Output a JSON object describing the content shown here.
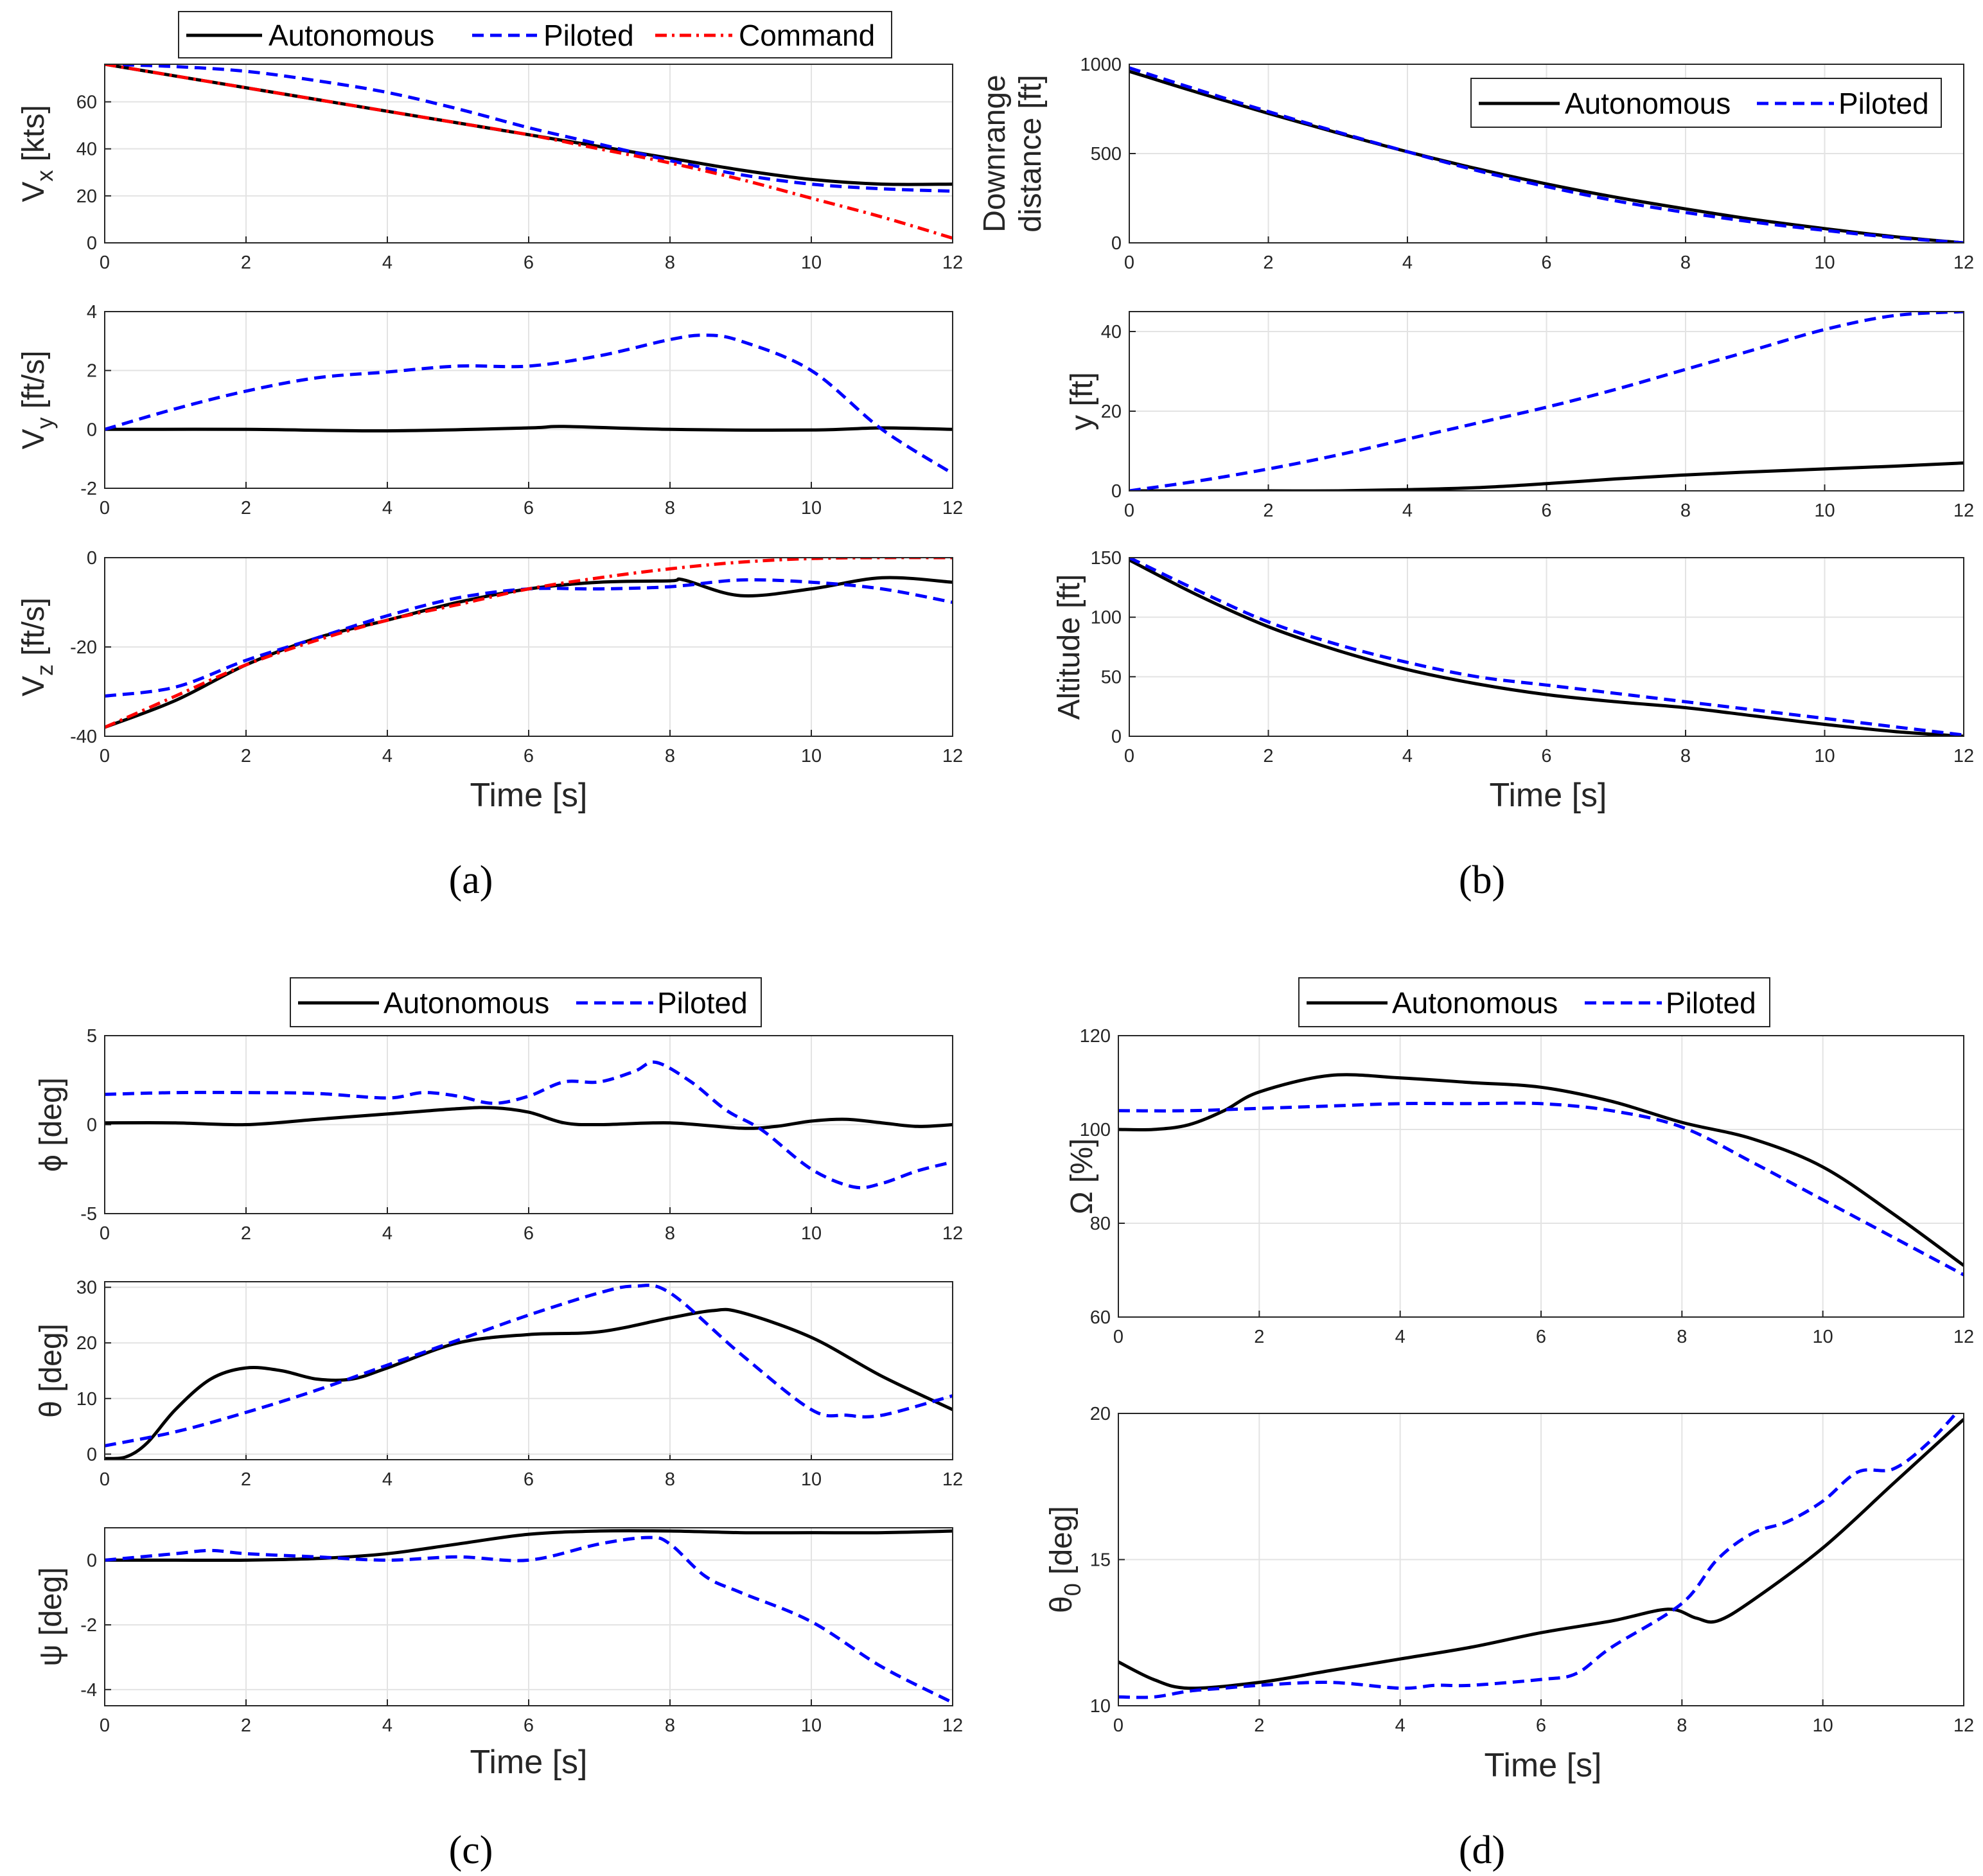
{
  "colors": {
    "autonomous": "#000000",
    "piloted": "#0000ff",
    "command": "#ff0000"
  },
  "xlabel": "Time [s]",
  "legend": {
    "autonomous": "Autonomous",
    "piloted": "Piloted",
    "command": "Command"
  },
  "panel_labels": {
    "a": "(a)",
    "b": "(b)",
    "c": "(c)",
    "d": "(d)"
  },
  "chart_data": [
    {
      "type": "line",
      "id": "vx",
      "ylabel": "V",
      "ylabel_sub": "x",
      "ylabel_unit": " [kts]",
      "xlim": [
        0,
        12
      ],
      "ylim": [
        0,
        76
      ],
      "yticks": [
        0,
        20,
        40,
        60
      ],
      "series": [
        {
          "name": "Autonomous",
          "style": "solid",
          "x": [
            0,
            1,
            2,
            3,
            4,
            5,
            6,
            7,
            8,
            9,
            10,
            11,
            12
          ],
          "y": [
            76,
            71,
            66,
            61,
            56,
            51,
            46,
            41,
            36,
            31,
            27,
            25,
            25
          ]
        },
        {
          "name": "Piloted",
          "style": "dashed",
          "x": [
            0,
            1,
            2,
            3,
            4,
            5,
            6,
            7,
            8,
            9,
            10,
            11,
            12
          ],
          "y": [
            76,
            75,
            73,
            69,
            64,
            57,
            49,
            42,
            35,
            29,
            25,
            23,
            22
          ]
        },
        {
          "name": "Command",
          "style": "dashdot",
          "x": [
            0,
            1,
            2,
            3,
            4,
            5,
            6,
            7,
            8,
            9,
            10,
            11,
            12
          ],
          "y": [
            76,
            71,
            66,
            61,
            56,
            51,
            46,
            40,
            34,
            27,
            19,
            11,
            2
          ]
        }
      ]
    },
    {
      "type": "line",
      "id": "vy",
      "ylabel": "V",
      "ylabel_sub": "y",
      "ylabel_unit": " [ft/s]",
      "xlim": [
        0,
        12
      ],
      "ylim": [
        -2,
        4
      ],
      "yticks": [
        -2,
        0,
        2,
        4
      ],
      "series": [
        {
          "name": "Autonomous",
          "style": "solid",
          "x": [
            0,
            2,
            4,
            6,
            6.5,
            8,
            10,
            11,
            12
          ],
          "y": [
            0,
            0,
            -0.05,
            0.05,
            0.1,
            0,
            -0.02,
            0.05,
            0
          ]
        },
        {
          "name": "Piloted",
          "style": "dashed",
          "x": [
            0,
            1,
            2,
            3,
            4,
            5,
            6,
            7,
            8,
            8.5,
            9,
            10,
            11,
            12
          ],
          "y": [
            0,
            0.7,
            1.3,
            1.75,
            1.95,
            2.15,
            2.15,
            2.5,
            3.05,
            3.2,
            3.0,
            2.0,
            0,
            -1.5
          ]
        }
      ]
    },
    {
      "type": "line",
      "id": "vz",
      "ylabel": "V",
      "ylabel_sub": "z",
      "ylabel_unit": " [ft/s]",
      "xlim": [
        0,
        12
      ],
      "ylim": [
        -40,
        0
      ],
      "yticks": [
        -40,
        -20,
        0
      ],
      "series": [
        {
          "name": "Autonomous",
          "style": "solid",
          "x": [
            0,
            1,
            2,
            3,
            4,
            5,
            6,
            7,
            8,
            8.2,
            9,
            10,
            11,
            12
          ],
          "y": [
            -38,
            -32,
            -24,
            -18,
            -14,
            -10,
            -7,
            -5.5,
            -5.2,
            -5,
            -8.5,
            -7,
            -4.5,
            -5.5
          ]
        },
        {
          "name": "Piloted",
          "style": "dashed",
          "x": [
            0,
            1,
            2,
            3,
            4,
            5,
            6,
            7,
            8,
            9,
            10,
            11,
            12
          ],
          "y": [
            -31,
            -29,
            -23,
            -18,
            -13,
            -9,
            -7,
            -7,
            -6.5,
            -5,
            -5.5,
            -7,
            -10
          ]
        },
        {
          "name": "Command",
          "style": "dashdot",
          "x": [
            0,
            1,
            2,
            3,
            4,
            5,
            6,
            7,
            8,
            9,
            10,
            11,
            12
          ],
          "y": [
            -38,
            -31,
            -24,
            -18.5,
            -14,
            -10.5,
            -7,
            -4.5,
            -2.5,
            -1,
            -0.2,
            0,
            0
          ]
        }
      ]
    },
    {
      "type": "line",
      "id": "downrange",
      "ylabel": "Downrange",
      "ylabel2": "distance [ft]",
      "xlim": [
        0,
        12
      ],
      "ylim": [
        0,
        1000
      ],
      "yticks": [
        0,
        500,
        1000
      ],
      "series": [
        {
          "name": "Autonomous",
          "style": "solid",
          "x": [
            0,
            1,
            2,
            3,
            4,
            5,
            6,
            7,
            8,
            9,
            10,
            11,
            12
          ],
          "y": [
            960,
            840,
            725,
            615,
            510,
            415,
            330,
            255,
            190,
            130,
            80,
            35,
            0
          ]
        },
        {
          "name": "Piloted",
          "style": "dashed",
          "x": [
            0,
            1,
            2,
            3,
            4,
            5,
            6,
            7,
            8,
            9,
            10,
            11,
            12
          ],
          "y": [
            980,
            855,
            735,
            620,
            510,
            405,
            315,
            235,
            170,
            115,
            70,
            30,
            0
          ]
        }
      ]
    },
    {
      "type": "line",
      "id": "y",
      "ylabel": "y [ft]",
      "xlim": [
        0,
        12
      ],
      "ylim": [
        0,
        45
      ],
      "yticks": [
        0,
        20,
        40
      ],
      "series": [
        {
          "name": "Autonomous",
          "style": "solid",
          "x": [
            0,
            1,
            2,
            3,
            4,
            5,
            6,
            7,
            8,
            9,
            10,
            11,
            12
          ],
          "y": [
            0,
            0,
            0,
            0,
            0.3,
            0.8,
            1.8,
            3,
            4,
            4.8,
            5.5,
            6.2,
            7
          ]
        },
        {
          "name": "Piloted",
          "style": "dashed",
          "x": [
            0,
            1,
            2,
            3,
            4,
            5,
            6,
            7,
            8,
            9,
            10,
            11,
            12
          ],
          "y": [
            0,
            2.5,
            5.5,
            9,
            13,
            17,
            21,
            25.5,
            30.5,
            35.5,
            40.5,
            44,
            45
          ]
        }
      ]
    },
    {
      "type": "line",
      "id": "altitude",
      "ylabel": "Altitude [ft]",
      "xlim": [
        0,
        12
      ],
      "ylim": [
        0,
        150
      ],
      "yticks": [
        0,
        50,
        100,
        150
      ],
      "series": [
        {
          "name": "Autonomous",
          "style": "solid",
          "x": [
            0,
            1,
            2,
            3,
            4,
            5,
            6,
            7,
            8,
            9,
            10,
            11,
            12
          ],
          "y": [
            148,
            118,
            92,
            72,
            56,
            44,
            35,
            29,
            24,
            17,
            10,
            4,
            0
          ]
        },
        {
          "name": "Piloted",
          "style": "dashed",
          "x": [
            0,
            1,
            2,
            3,
            4,
            5,
            6,
            7,
            8,
            9,
            10,
            11,
            12
          ],
          "y": [
            150,
            122,
            96,
            77,
            62,
            50,
            43,
            36,
            29,
            22,
            15,
            8,
            1
          ]
        }
      ]
    },
    {
      "type": "line",
      "id": "phi",
      "ylabel": "ϕ [deg]",
      "xlim": [
        0,
        12
      ],
      "ylim": [
        -5,
        5
      ],
      "yticks": [
        -5,
        0,
        5
      ],
      "series": [
        {
          "name": "Autonomous",
          "style": "solid",
          "x": [
            0,
            1,
            2,
            3,
            4,
            5,
            5.5,
            6,
            6.5,
            7,
            8,
            9,
            9.5,
            10,
            10.5,
            11,
            11.5,
            12
          ],
          "y": [
            0.1,
            0.1,
            0,
            0.3,
            0.6,
            0.9,
            0.95,
            0.7,
            0.1,
            0,
            0.1,
            -0.2,
            -0.1,
            0.2,
            0.3,
            0.1,
            -0.1,
            0
          ]
        },
        {
          "name": "Piloted",
          "style": "dashed",
          "x": [
            0,
            1,
            2,
            3,
            4,
            4.5,
            5,
            5.5,
            6,
            6.5,
            7,
            7.5,
            7.8,
            8.3,
            8.8,
            9.3,
            10,
            10.6,
            11,
            11.5,
            12
          ],
          "y": [
            1.7,
            1.8,
            1.8,
            1.75,
            1.5,
            1.8,
            1.6,
            1.2,
            1.6,
            2.4,
            2.4,
            3.0,
            3.5,
            2.4,
            0.8,
            -0.3,
            -2.5,
            -3.5,
            -3.3,
            -2.6,
            -2.1
          ]
        }
      ]
    },
    {
      "type": "line",
      "id": "theta",
      "ylabel": "θ [deg]",
      "xlim": [
        0,
        12
      ],
      "ylim": [
        -1,
        31
      ],
      "yticks": [
        0,
        10,
        20,
        30
      ],
      "series": [
        {
          "name": "Autonomous",
          "style": "solid",
          "x": [
            0,
            0.3,
            0.6,
            1,
            1.5,
            2,
            2.5,
            3,
            3.5,
            4,
            5,
            6,
            7,
            8,
            8.6,
            9,
            10,
            11,
            12
          ],
          "y": [
            -0.8,
            -0.5,
            2,
            8,
            13.5,
            15.5,
            15,
            13.5,
            13.5,
            15.5,
            20,
            21.5,
            22,
            24.5,
            25.8,
            25.5,
            21,
            14,
            8
          ]
        },
        {
          "name": "Piloted",
          "style": "dashed",
          "x": [
            0,
            1,
            2,
            3,
            4,
            5,
            6,
            7,
            7.5,
            8,
            9,
            10,
            10.5,
            11,
            12
          ],
          "y": [
            1.5,
            4,
            7.5,
            11.5,
            16,
            20.5,
            25,
            29,
            30.2,
            29,
            18,
            8,
            7,
            7,
            10.5
          ]
        }
      ]
    },
    {
      "type": "line",
      "id": "psi",
      "ylabel": "ψ [deg]",
      "xlim": [
        0,
        12
      ],
      "ylim": [
        -4.5,
        1
      ],
      "yticks": [
        -4,
        -2,
        0
      ],
      "series": [
        {
          "name": "Autonomous",
          "style": "solid",
          "x": [
            0,
            1,
            2,
            3,
            4,
            5,
            6,
            7,
            8,
            9,
            10,
            11,
            12
          ],
          "y": [
            0,
            0,
            0,
            0.05,
            0.2,
            0.5,
            0.8,
            0.9,
            0.9,
            0.85,
            0.85,
            0.85,
            0.9
          ]
        },
        {
          "name": "Piloted",
          "style": "dashed",
          "x": [
            0,
            1,
            1.5,
            2,
            3,
            4,
            5,
            6,
            7,
            7.7,
            8,
            8.5,
            9,
            10,
            11,
            12
          ],
          "y": [
            0,
            0.2,
            0.3,
            0.2,
            0.1,
            0,
            0.1,
            0,
            0.5,
            0.7,
            0.5,
            -0.5,
            -1,
            -1.9,
            -3.3,
            -4.4
          ]
        }
      ]
    },
    {
      "type": "line",
      "id": "omega",
      "ylabel": "Ω [%]",
      "xlim": [
        0,
        12
      ],
      "ylim": [
        60,
        120
      ],
      "yticks": [
        60,
        80,
        100,
        120
      ],
      "series": [
        {
          "name": "Autonomous",
          "style": "solid",
          "x": [
            0,
            0.5,
            1,
            1.5,
            2,
            3,
            4,
            5,
            6,
            7,
            8,
            9,
            10,
            11,
            12
          ],
          "y": [
            100,
            100,
            101,
            104,
            108,
            111.5,
            111,
            110,
            109,
            106,
            101.5,
            98,
            92,
            82,
            71
          ]
        },
        {
          "name": "Piloted",
          "style": "dashed",
          "x": [
            0,
            1,
            2,
            3,
            4,
            5,
            6,
            7,
            8,
            9,
            10,
            11,
            12
          ],
          "y": [
            104,
            104,
            104.5,
            105,
            105.5,
            105.5,
            105.5,
            104,
            100.5,
            93,
            85,
            77,
            69
          ]
        }
      ]
    },
    {
      "type": "line",
      "id": "theta0",
      "ylabel": "θ",
      "ylabel_sub": "0",
      "ylabel_unit": " [deg]",
      "xlim": [
        0,
        12
      ],
      "ylim": [
        10,
        20
      ],
      "yticks": [
        10,
        15,
        20
      ],
      "series": [
        {
          "name": "Autonomous",
          "style": "solid",
          "x": [
            0,
            0.5,
            1,
            2,
            3,
            4,
            5,
            6,
            7,
            7.8,
            8.2,
            8.5,
            9,
            10,
            11,
            12
          ],
          "y": [
            11.5,
            10.9,
            10.6,
            10.8,
            11.2,
            11.6,
            12.0,
            12.5,
            12.9,
            13.3,
            13.0,
            12.9,
            13.6,
            15.4,
            17.6,
            19.8
          ]
        },
        {
          "name": "Piloted",
          "style": "dashed",
          "x": [
            0,
            0.5,
            1,
            1.5,
            2,
            3,
            4,
            4.5,
            5,
            6,
            6.5,
            7,
            8,
            8.5,
            9,
            9.5,
            10,
            10.5,
            11,
            11.5,
            12
          ],
          "y": [
            10.3,
            10.3,
            10.5,
            10.6,
            10.7,
            10.8,
            10.6,
            10.7,
            10.7,
            10.9,
            11.1,
            12,
            13.5,
            15,
            15.9,
            16.3,
            17.0,
            18.0,
            18.1,
            19.0,
            20.3
          ]
        }
      ]
    }
  ]
}
